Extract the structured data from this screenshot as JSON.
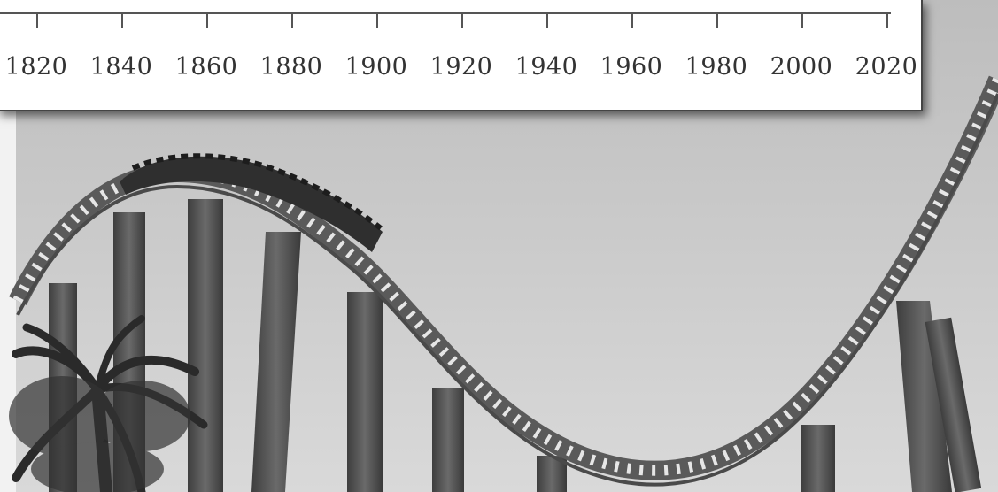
{
  "timeline": {
    "labels": [
      "1820",
      "1840",
      "1860",
      "1880",
      "1900",
      "1920",
      "1940",
      "1960",
      "1980",
      "2000",
      "2020"
    ]
  },
  "photo": {
    "subject": "roller-coaster",
    "tone": "grayscale"
  }
}
